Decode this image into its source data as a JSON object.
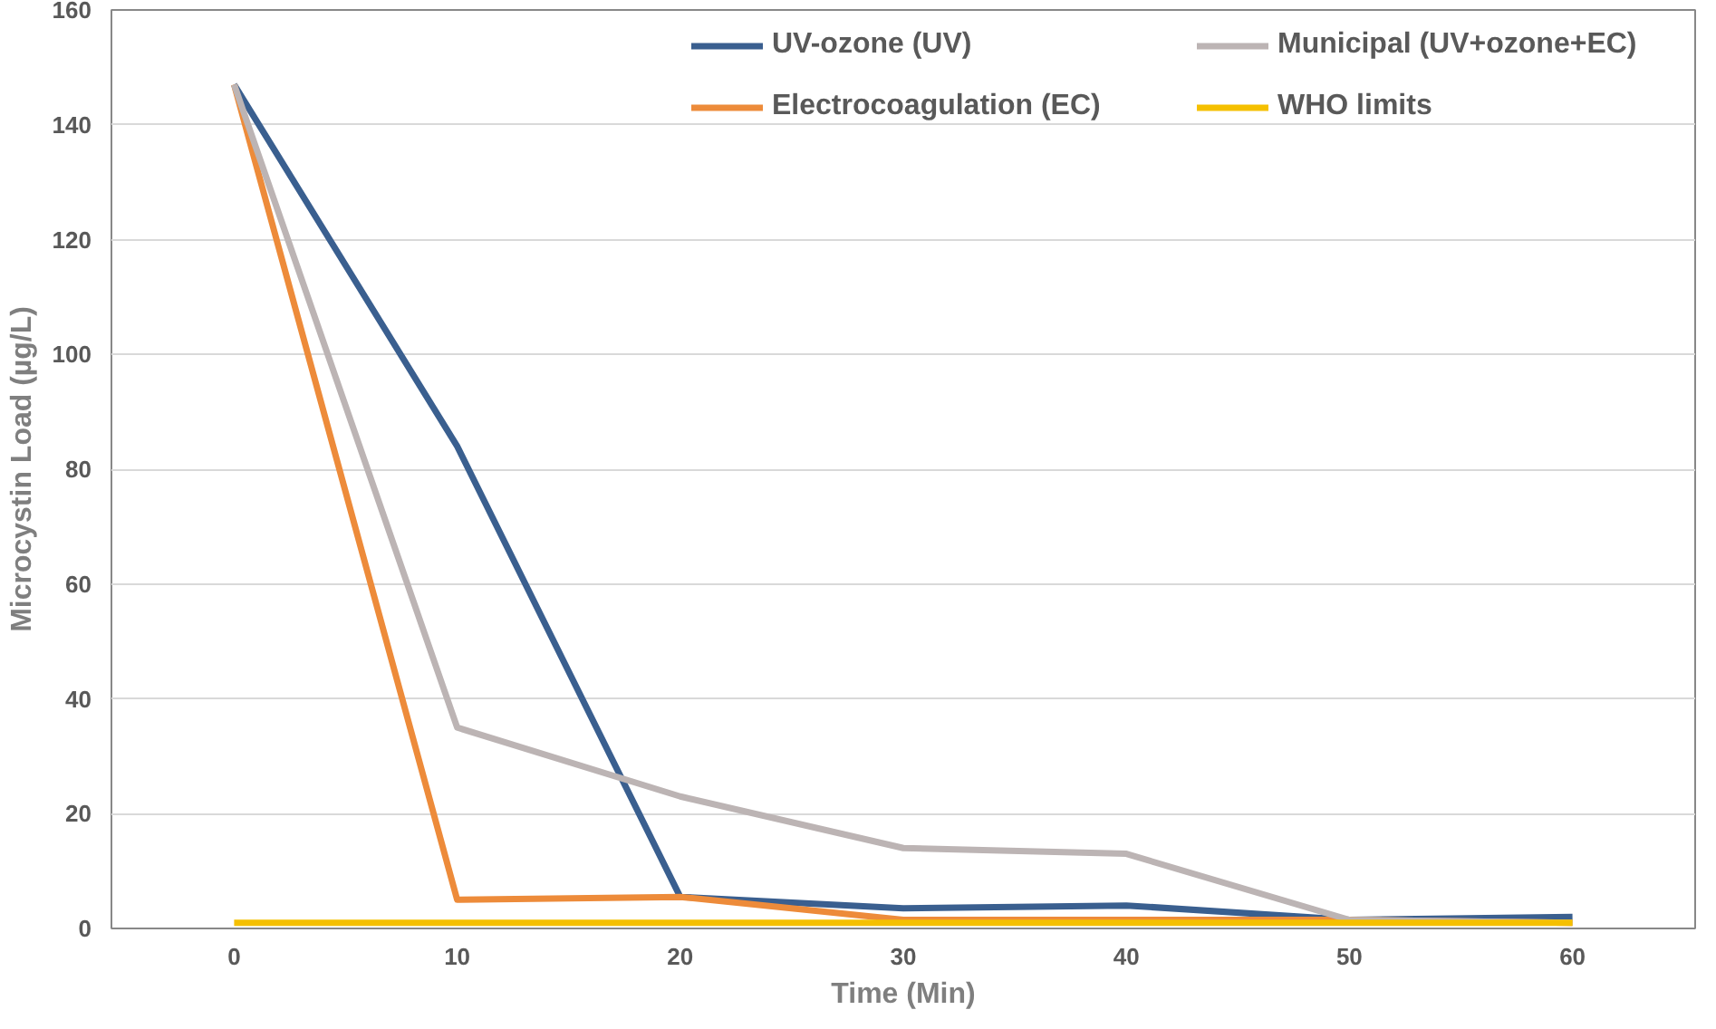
{
  "chart_data": {
    "type": "line",
    "xlabel": "Time (Min)",
    "ylabel": "Microcystin Load (µg/L)",
    "x": [
      0,
      10,
      20,
      30,
      40,
      50,
      60
    ],
    "series": [
      {
        "name": "UV-ozone (UV)",
        "color": "#3a5f8f",
        "values": [
          147,
          84,
          5.5,
          3.5,
          4,
          1.5,
          2
        ]
      },
      {
        "name": "Electrocoagulation (EC)",
        "color": "#ed8b3a",
        "values": [
          147,
          5,
          5.5,
          1.5,
          1.5,
          1.5,
          1
        ]
      },
      {
        "name": "Municipal (UV+ozone+EC)",
        "color": "#bcb4b4",
        "values": [
          147,
          35,
          23,
          14,
          13,
          1.5,
          1
        ]
      },
      {
        "name": "WHO limits",
        "color": "#f5c000",
        "values": [
          1,
          1,
          1,
          1,
          1,
          1,
          1
        ]
      }
    ],
    "xlim": [
      -5.5,
      65.5
    ],
    "ylim": [
      0,
      160
    ],
    "xticks": [
      0,
      10,
      20,
      30,
      40,
      50,
      60
    ],
    "yticks": [
      0,
      20,
      40,
      60,
      80,
      100,
      120,
      140,
      160
    ],
    "grid": "y",
    "legend": "top right",
    "marker": "none",
    "line_style": "solid"
  }
}
